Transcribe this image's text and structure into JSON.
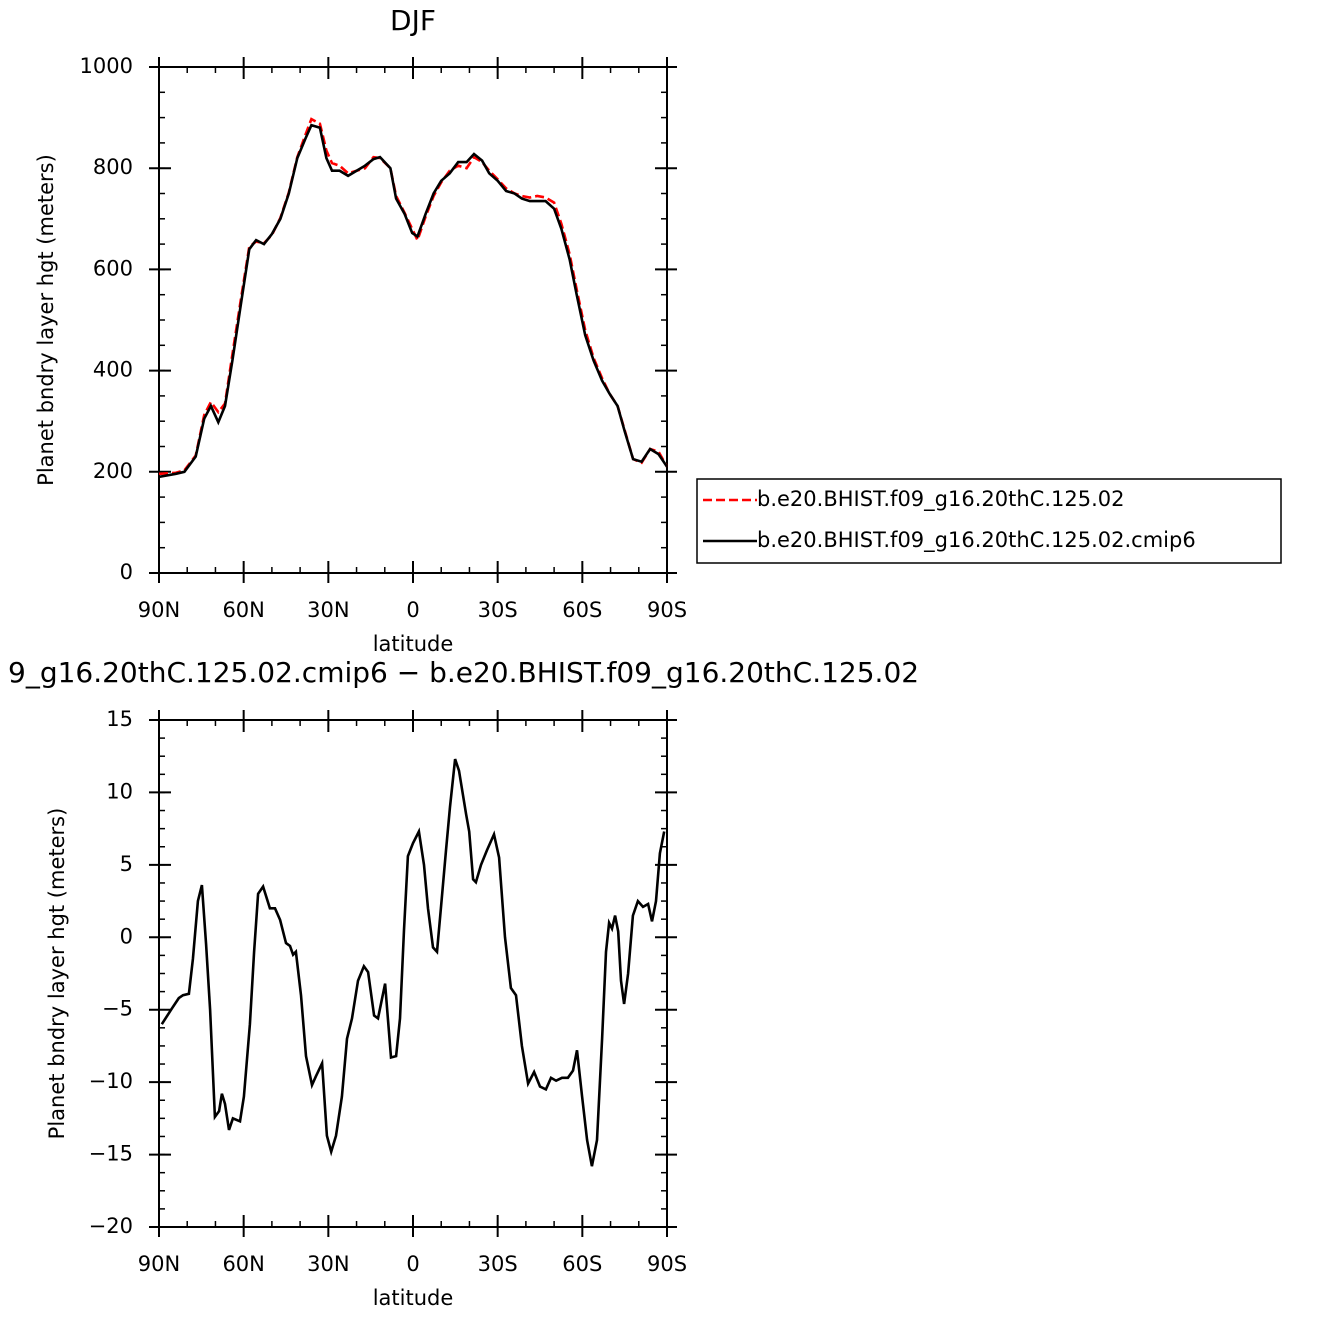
{
  "chart_data": [
    {
      "type": "line",
      "title": "DJF",
      "ylabel": "Planet bndry layer hgt (meters)",
      "xlabel": "latitude",
      "xlim": [
        90,
        -90
      ],
      "xticks": [
        {
          "value": 90,
          "label": "90N"
        },
        {
          "value": 60,
          "label": "60N"
        },
        {
          "value": 30,
          "label": "30N"
        },
        0,
        {
          "value": -30,
          "label": "30S"
        },
        {
          "value": -60,
          "label": "60S"
        },
        {
          "value": -90,
          "label": "90S"
        }
      ],
      "ylim": [
        0,
        1000
      ],
      "yticks": [
        0,
        200,
        400,
        600,
        800,
        1000
      ],
      "legend": "right",
      "x": [
        90,
        84,
        81,
        77,
        74,
        71.6,
        69,
        66.6,
        64,
        61,
        58,
        55.6,
        52.8,
        50,
        47,
        44,
        41,
        38,
        36,
        33,
        30.7,
        28.7,
        26,
        23,
        20,
        17,
        14,
        11.7,
        8,
        6,
        3,
        0.3,
        -1.6,
        -4.5,
        -7.3,
        -10,
        -13,
        -16,
        -19,
        -21.6,
        -24.5,
        -27,
        -30,
        -33,
        -36,
        -38.6,
        -41.4,
        -44,
        -47,
        -50,
        -52.6,
        -55.5,
        -58,
        -61,
        -64,
        -67,
        -69.6,
        -72.5,
        -75,
        -78,
        -81,
        -84,
        -87,
        -90
      ],
      "series": [
        {
          "name": "b.e20.BHIST.f09_g16.20thC.125.02",
          "color": "#ff0000",
          "dash": "dashed",
          "values": [
            196,
            198,
            203,
            232,
            312,
            338,
            318,
            335,
            432,
            540,
            645,
            655,
            652,
            668,
            702,
            752,
            822,
            868,
            897,
            888,
            835,
            810,
            805,
            790,
            795,
            800,
            822,
            820,
            800,
            745,
            712,
            680,
            658,
            705,
            745,
            772,
            795,
            805,
            800,
            822,
            812,
            795,
            778,
            760,
            750,
            745,
            742,
            745,
            742,
            732,
            690,
            630,
            560,
            480,
            425,
            385,
            355,
            330,
            282,
            225,
            218,
            245,
            240,
            210
          ]
        },
        {
          "name": "b.e20.BHIST.f09_g16.20thC.125.02.cmip6",
          "color": "#000000",
          "dash": "solid",
          "values": [
            190,
            196,
            200,
            230,
            305,
            330,
            298,
            330,
            420,
            530,
            640,
            658,
            650,
            670,
            700,
            750,
            820,
            860,
            885,
            880,
            820,
            795,
            795,
            785,
            795,
            805,
            818,
            822,
            800,
            740,
            710,
            672,
            665,
            710,
            750,
            775,
            790,
            812,
            812,
            828,
            815,
            790,
            775,
            755,
            750,
            740,
            735,
            735,
            735,
            720,
            680,
            620,
            550,
            470,
            420,
            380,
            355,
            330,
            280,
            225,
            220,
            245,
            235,
            210
          ]
        }
      ]
    },
    {
      "type": "line",
      "title": "9_g16.20thC.125.02.cmip6 − b.e20.BHIST.f09_g16.20thC.125.02",
      "ylabel": "Planet bndry layer hgt (meters)",
      "xlabel": "latitude",
      "xlim": [
        90,
        -90
      ],
      "xticks": [
        {
          "value": 90,
          "label": "90N"
        },
        {
          "value": 60,
          "label": "60N"
        },
        {
          "value": 30,
          "label": "30N"
        },
        0,
        {
          "value": -30,
          "label": "30S"
        },
        {
          "value": -60,
          "label": "60S"
        },
        {
          "value": -90,
          "label": "90S"
        }
      ],
      "ylim": [
        -20,
        15
      ],
      "yticks": [
        {
          "value": -20,
          "label": "−20"
        },
        {
          "value": -15,
          "label": "−15"
        },
        {
          "value": -10,
          "label": "−10"
        },
        {
          "value": -5,
          "label": "−5"
        },
        0,
        5,
        10,
        15
      ],
      "x": [
        89,
        85.4,
        83,
        81.5,
        79.4,
        78,
        76.2,
        74.8,
        73.3,
        71.9,
        70.2,
        68.7,
        67.7,
        66.6,
        65.2,
        63.8,
        61.3,
        59.9,
        57.8,
        56.3,
        54.9,
        53.1,
        50.7,
        48.9,
        47.1,
        45,
        43.6,
        42.5,
        41.5,
        39.7,
        37.9,
        35.8,
        34.4,
        32.2,
        30.5,
        29,
        27.3,
        25.2,
        23.4,
        21.6,
        19.5,
        17.4,
        15.9,
        13.8,
        12.4,
        9.9,
        7.8,
        6,
        4.6,
        3.2,
        1.8,
        0,
        -2.1,
        -3.9,
        -5.3,
        -7.1,
        -8.5,
        -9.9,
        -11.7,
        -13.1,
        -14.9,
        -16.3,
        -18.8,
        -19.9,
        -21.3,
        -22.3,
        -24.1,
        -26.2,
        -28.7,
        -30.5,
        -32.6,
        -34.7,
        -36.5,
        -38.6,
        -40.8,
        -42.9,
        -45,
        -47.1,
        -48.9,
        -50.7,
        -52.8,
        -54.9,
        -56.7,
        -58.1,
        -59.9,
        -61.7,
        -63.4,
        -65.2,
        -67,
        -68.4,
        -69.5,
        -70.5,
        -71.6,
        -72.7,
        -73.7,
        -74.8,
        -76.2,
        -77.9,
        -79.7,
        -81.5,
        -83.3,
        -84.7,
        -86.1,
        -87.5,
        -89
      ],
      "series": [
        {
          "color": "#000000",
          "dash": "solid",
          "values": [
            -6,
            -4.9,
            -4.2,
            -4,
            -3.9,
            -1.5,
            2.5,
            3.6,
            -0.5,
            -5,
            -12.4,
            -12,
            -10.8,
            -11.5,
            -13.3,
            -12.5,
            -12.7,
            -11,
            -6,
            -1,
            3,
            3.5,
            2,
            2,
            1.2,
            -0.4,
            -0.6,
            -1.2,
            -1,
            -4,
            -8.2,
            -10.2,
            -9.6,
            -8.7,
            -13.7,
            -14.8,
            -13.7,
            -11,
            -7,
            -5.6,
            -3,
            -2,
            -2.4,
            -5.4,
            -5.6,
            -3.2,
            -8.3,
            -8.2,
            -5.6,
            0.5,
            5.6,
            6.5,
            7.3,
            5,
            2,
            -0.7,
            -1,
            2,
            6,
            9,
            12.3,
            11.5,
            8.5,
            7.3,
            4,
            3.8,
            5,
            6,
            7.1,
            5.5,
            0,
            -3.5,
            -4,
            -7.5,
            -10.1,
            -9.3,
            -10.3,
            -10.5,
            -9.7,
            -9.9,
            -9.7,
            -9.7,
            -9.2,
            -7.8,
            -11,
            -14,
            -15.8,
            -14,
            -7,
            -1,
            1,
            0.6,
            1.5,
            0.4,
            -3,
            -4.6,
            -2.5,
            1.5,
            2.5,
            2.1,
            2.3,
            1.1,
            2.5,
            5.8,
            7.3
          ]
        }
      ]
    }
  ]
}
